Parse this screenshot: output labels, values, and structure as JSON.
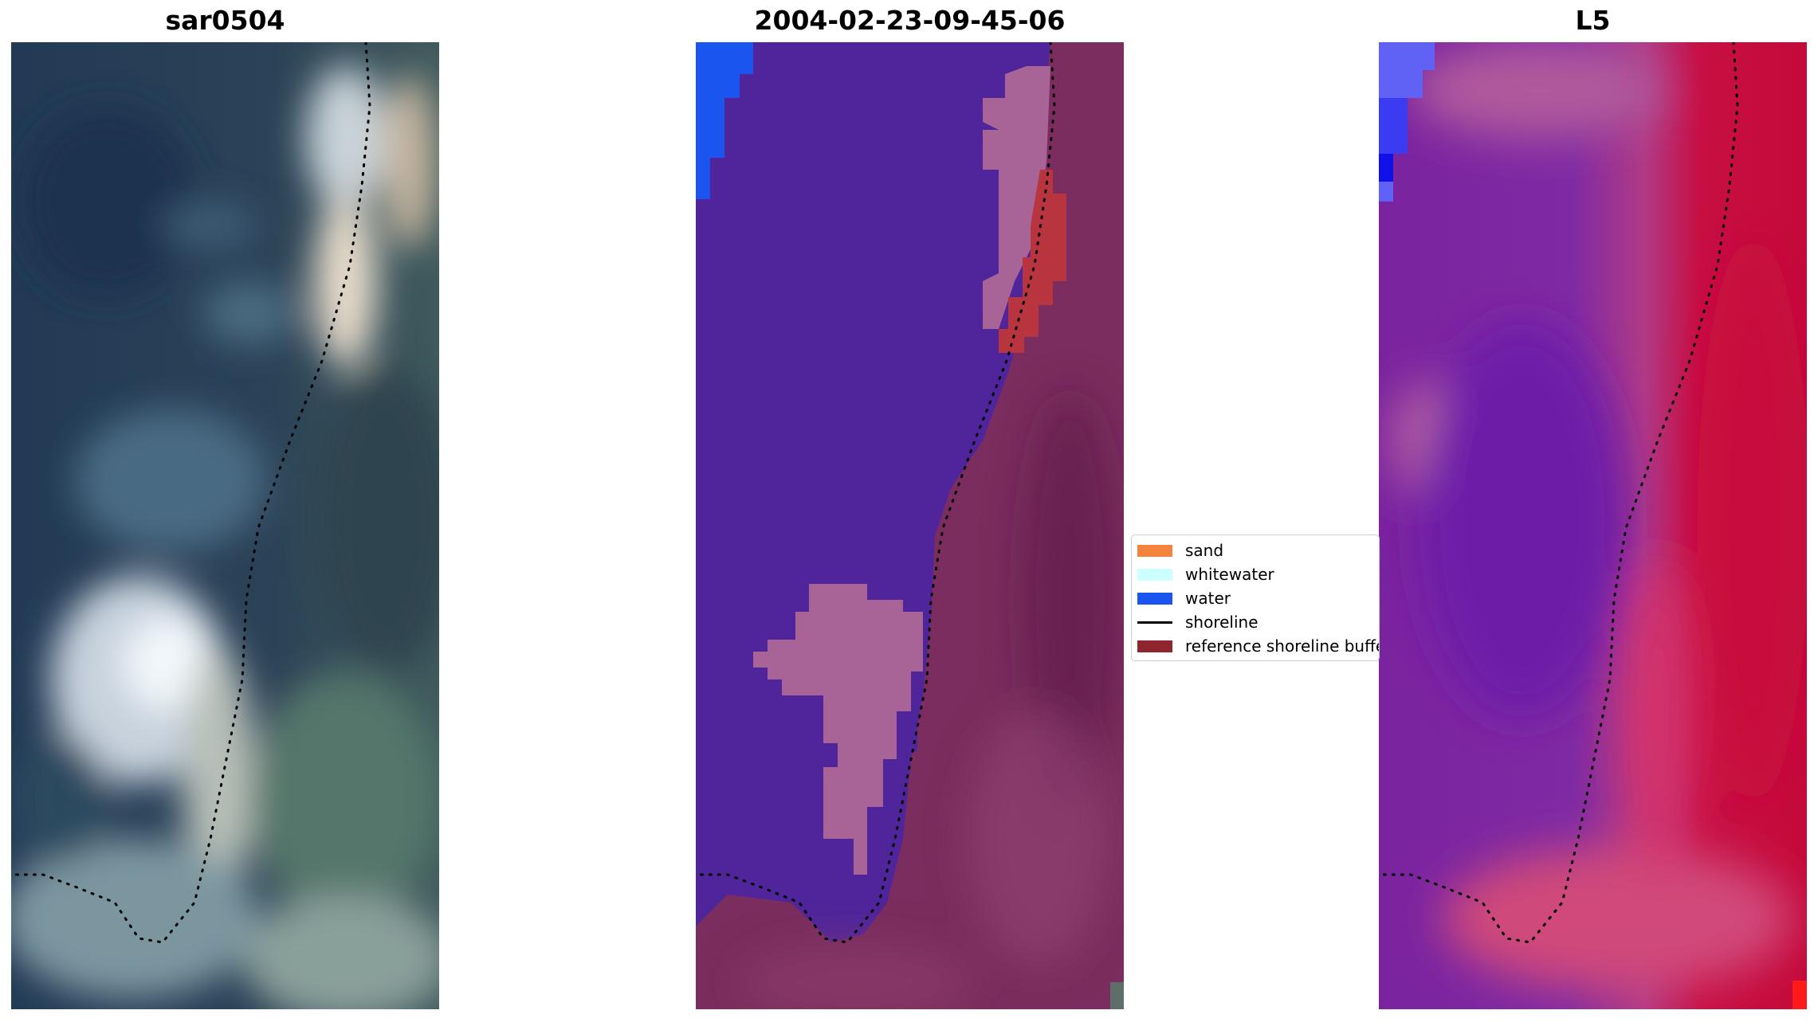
{
  "panels": [
    {
      "title": "sar0504"
    },
    {
      "title": "2004-02-23-09-45-06"
    },
    {
      "title": "L5"
    }
  ],
  "legend": {
    "items": [
      {
        "label": "sand",
        "color": "#f4833d"
      },
      {
        "label": "whitewater",
        "color": "#ccffff"
      },
      {
        "label": "water",
        "color": "#1a55f0"
      },
      {
        "label": "shoreline",
        "color": "#000000"
      },
      {
        "label": "reference shoreline buffer",
        "color": "#8e2630"
      }
    ]
  },
  "colors": {
    "classified_water": "#50259b",
    "classified_land": "#7a2d5e",
    "classified_whitewater": "#a86497",
    "classified_buffer": "#b8343f",
    "index_water": "#6d1fa8",
    "index_land": "#c80a3c"
  }
}
